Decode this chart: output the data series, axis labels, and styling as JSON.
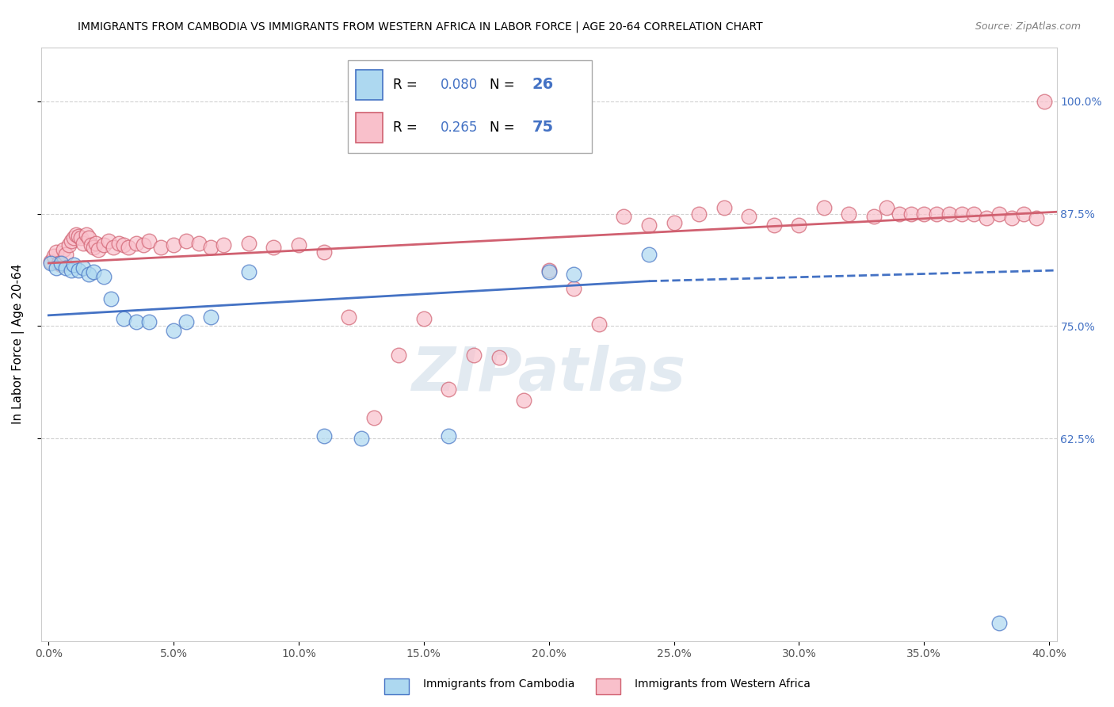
{
  "title": "IMMIGRANTS FROM CAMBODIA VS IMMIGRANTS FROM WESTERN AFRICA IN LABOR FORCE | AGE 20-64 CORRELATION CHART",
  "source": "Source: ZipAtlas.com",
  "ylabel": "In Labor Force | Age 20-64",
  "xlim": [
    -0.003,
    0.403
  ],
  "ylim": [
    0.4,
    1.06
  ],
  "yticks": [
    0.625,
    0.75,
    0.875,
    1.0
  ],
  "ytick_labels": [
    "62.5%",
    "75.0%",
    "87.5%",
    "100.0%"
  ],
  "xticks": [
    0.0,
    0.05,
    0.1,
    0.15,
    0.2,
    0.25,
    0.3,
    0.35,
    0.4
  ],
  "xtick_labels": [
    "0.0%",
    "5.0%",
    "10.0%",
    "15.0%",
    "20.0%",
    "25.0%",
    "30.0%",
    "35.0%",
    "40.0%"
  ],
  "r_cambodia": 0.08,
  "n_cambodia": 26,
  "r_western_africa": 0.265,
  "n_western_africa": 75,
  "color_cambodia": "#add8f0",
  "color_western_africa": "#f9c0cb",
  "line_color_cambodia": "#4472c4",
  "line_color_western_africa": "#d06070",
  "watermark": "ZIPatlas",
  "cambodia_x": [
    0.001,
    0.003,
    0.005,
    0.007,
    0.009,
    0.01,
    0.012,
    0.014,
    0.016,
    0.018,
    0.022,
    0.025,
    0.03,
    0.035,
    0.04,
    0.05,
    0.055,
    0.065,
    0.08,
    0.11,
    0.125,
    0.16,
    0.2,
    0.21,
    0.24,
    0.38
  ],
  "cambodia_y": [
    0.82,
    0.815,
    0.82,
    0.815,
    0.812,
    0.818,
    0.812,
    0.815,
    0.808,
    0.81,
    0.805,
    0.78,
    0.758,
    0.755,
    0.755,
    0.745,
    0.755,
    0.76,
    0.81,
    0.628,
    0.625,
    0.628,
    0.81,
    0.808,
    0.83,
    0.42
  ],
  "western_africa_x": [
    0.001,
    0.002,
    0.003,
    0.004,
    0.005,
    0.006,
    0.007,
    0.008,
    0.009,
    0.01,
    0.011,
    0.012,
    0.013,
    0.014,
    0.015,
    0.016,
    0.017,
    0.018,
    0.019,
    0.02,
    0.022,
    0.024,
    0.026,
    0.028,
    0.03,
    0.032,
    0.035,
    0.038,
    0.04,
    0.045,
    0.05,
    0.055,
    0.06,
    0.065,
    0.07,
    0.08,
    0.09,
    0.1,
    0.11,
    0.12,
    0.13,
    0.14,
    0.15,
    0.16,
    0.17,
    0.18,
    0.19,
    0.2,
    0.21,
    0.22,
    0.23,
    0.24,
    0.25,
    0.26,
    0.27,
    0.28,
    0.29,
    0.3,
    0.31,
    0.32,
    0.33,
    0.335,
    0.34,
    0.345,
    0.35,
    0.355,
    0.36,
    0.365,
    0.37,
    0.375,
    0.38,
    0.385,
    0.39,
    0.395,
    0.398
  ],
  "western_africa_y": [
    0.822,
    0.828,
    0.832,
    0.82,
    0.818,
    0.835,
    0.83,
    0.84,
    0.845,
    0.848,
    0.852,
    0.85,
    0.848,
    0.842,
    0.852,
    0.848,
    0.84,
    0.838,
    0.842,
    0.835,
    0.84,
    0.845,
    0.838,
    0.842,
    0.84,
    0.838,
    0.842,
    0.84,
    0.845,
    0.838,
    0.84,
    0.845,
    0.842,
    0.838,
    0.84,
    0.842,
    0.838,
    0.84,
    0.832,
    0.76,
    0.648,
    0.718,
    0.758,
    0.68,
    0.718,
    0.715,
    0.668,
    0.812,
    0.792,
    0.752,
    0.872,
    0.862,
    0.865,
    0.875,
    0.882,
    0.872,
    0.862,
    0.862,
    0.882,
    0.875,
    0.872,
    0.882,
    0.875,
    0.875,
    0.875,
    0.875,
    0.875,
    0.875,
    0.875,
    0.87,
    0.875,
    0.87,
    0.875,
    0.87,
    1.0
  ],
  "trend_cambodia_x0": 0.0,
  "trend_cambodia_y0": 0.762,
  "trend_cambodia_x1": 0.24,
  "trend_cambodia_y1": 0.8,
  "trend_cambodia_dash_x1": 0.403,
  "trend_cambodia_dash_y1": 0.812,
  "trend_wa_x0": 0.0,
  "trend_wa_y0": 0.82,
  "trend_wa_x1": 0.403,
  "trend_wa_y1": 0.877
}
